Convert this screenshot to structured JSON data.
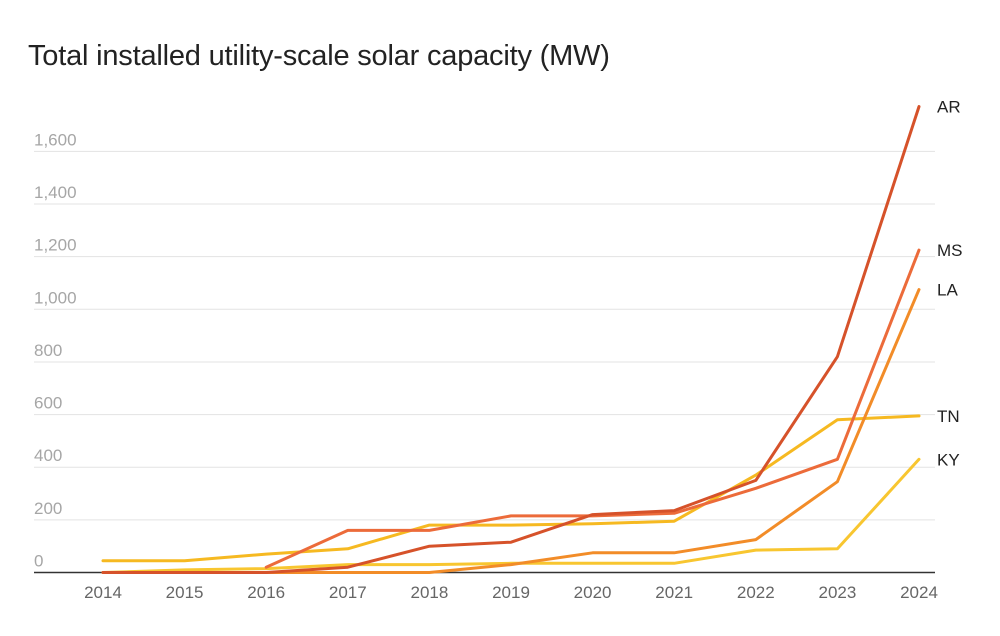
{
  "chart_data": {
    "type": "line",
    "title": "Total installed utility-scale solar capacity (MW)",
    "xlabel": "",
    "ylabel": "",
    "x": [
      "2014",
      "2015",
      "2016",
      "2017",
      "2018",
      "2019",
      "2020",
      "2021",
      "2022",
      "2023",
      "2024"
    ],
    "yticks": [
      "0",
      "200",
      "400",
      "600",
      "800",
      "1,000",
      "1,200",
      "1,400",
      "1,600"
    ],
    "ylim": [
      0,
      1800
    ],
    "grid": true,
    "legend": "none (series labeled at line ends)",
    "series": [
      {
        "name": "AR",
        "color": "#d6522a",
        "values": [
          0,
          0,
          0,
          20,
          100,
          115,
          220,
          235,
          350,
          820,
          1770
        ]
      },
      {
        "name": "MS",
        "color": "#ec6b3a",
        "values": [
          null,
          null,
          20,
          160,
          160,
          215,
          215,
          225,
          320,
          430,
          1225
        ]
      },
      {
        "name": "LA",
        "color": "#f28c28",
        "values": [
          0,
          0,
          0,
          0,
          0,
          30,
          75,
          75,
          125,
          345,
          1075
        ]
      },
      {
        "name": "TN",
        "color": "#f6b921",
        "values": [
          45,
          45,
          70,
          90,
          180,
          180,
          185,
          195,
          370,
          580,
          595
        ]
      },
      {
        "name": "KY",
        "color": "#f8c630",
        "values": [
          0,
          10,
          15,
          30,
          30,
          35,
          35,
          35,
          85,
          90,
          430
        ]
      }
    ]
  }
}
